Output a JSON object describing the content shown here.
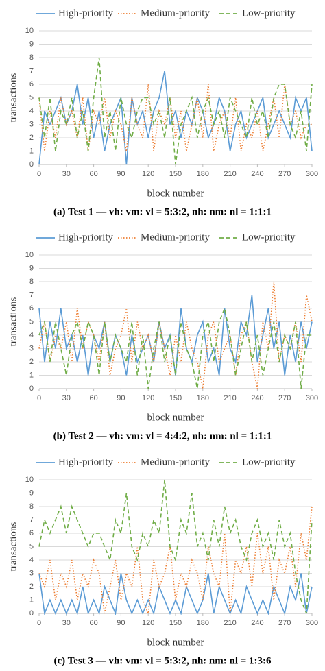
{
  "chart_data": [
    {
      "type": "line",
      "title": "(a) Test 1 — vh: vm: vl = 5:3:2, nh: nm: nl = 1:1:1",
      "x_label": "block number",
      "y_label": "transactions",
      "x": [
        0,
        6,
        12,
        18,
        24,
        30,
        36,
        42,
        48,
        54,
        60,
        66,
        72,
        78,
        84,
        90,
        96,
        102,
        108,
        114,
        120,
        126,
        132,
        138,
        144,
        150,
        156,
        162,
        168,
        174,
        180,
        186,
        192,
        198,
        204,
        210,
        216,
        222,
        228,
        234,
        240,
        246,
        252,
        258,
        264,
        270,
        276,
        282,
        288,
        294,
        300
      ],
      "xlim": [
        0,
        300
      ],
      "xticks": [
        0,
        30,
        60,
        90,
        120,
        150,
        180,
        210,
        240,
        270,
        300
      ],
      "ylim": [
        0,
        10
      ],
      "yticks": [
        0,
        1,
        2,
        3,
        4,
        5,
        6,
        7,
        8,
        9,
        10
      ],
      "grid": true,
      "series": [
        {
          "name": "High-priority",
          "color": "#5b9bd5",
          "dash": "solid",
          "values": [
            0,
            4,
            3,
            4,
            5,
            3,
            4,
            6,
            3,
            5,
            2,
            4,
            1,
            3,
            4,
            5,
            0,
            5,
            3,
            4,
            2,
            4,
            5,
            7,
            3,
            4,
            2,
            4,
            3,
            5,
            4,
            2,
            3,
            5,
            4,
            1,
            3,
            4,
            2,
            3,
            4,
            5,
            2,
            3,
            4,
            3,
            2,
            5,
            4,
            5,
            1
          ]
        },
        {
          "name": "Medium-priority",
          "color": "#ed7d31",
          "dash": "dotted",
          "values": [
            5,
            1,
            4,
            2,
            5,
            3,
            4,
            2,
            5,
            1,
            4,
            3,
            5,
            2,
            4,
            3,
            1,
            5,
            3,
            2,
            6,
            1,
            4,
            3,
            5,
            2,
            4,
            1,
            3,
            5,
            2,
            6,
            1,
            3,
            4,
            2,
            5,
            1,
            3,
            2,
            4,
            1,
            3,
            5,
            2,
            6,
            3,
            4,
            2,
            3,
            3
          ]
        },
        {
          "name": "Low-priority",
          "color": "#70ad47",
          "dash": "dashed",
          "values": [
            5,
            2,
            5,
            1,
            4,
            3,
            5,
            2,
            4,
            1,
            5,
            8,
            2,
            4,
            1,
            5,
            3,
            2,
            4,
            5,
            5,
            3,
            4,
            2,
            5,
            0,
            3,
            4,
            5,
            2,
            4,
            5,
            3,
            4,
            2,
            5,
            4,
            3,
            2,
            5,
            3,
            4,
            2,
            5,
            6,
            6,
            3,
            2,
            4,
            1,
            6
          ]
        }
      ]
    },
    {
      "type": "line",
      "title": "(b) Test 2 — vh: vm: vl = 4:4:2, nh: nm: nl = 1:1:1",
      "x_label": "block number",
      "y_label": "transactions",
      "x": [
        0,
        6,
        12,
        18,
        24,
        30,
        36,
        42,
        48,
        54,
        60,
        66,
        72,
        78,
        84,
        90,
        96,
        102,
        108,
        114,
        120,
        126,
        132,
        138,
        144,
        150,
        156,
        162,
        168,
        174,
        180,
        186,
        192,
        198,
        204,
        210,
        216,
        222,
        228,
        234,
        240,
        246,
        252,
        258,
        264,
        270,
        276,
        282,
        288,
        294,
        300
      ],
      "xlim": [
        0,
        300
      ],
      "xticks": [
        0,
        30,
        60,
        90,
        120,
        150,
        180,
        210,
        240,
        270,
        300
      ],
      "ylim": [
        0,
        10
      ],
      "yticks": [
        0,
        1,
        2,
        3,
        4,
        5,
        6,
        7,
        8,
        9,
        10
      ],
      "grid": true,
      "series": [
        {
          "name": "High-priority",
          "color": "#5b9bd5",
          "dash": "solid",
          "values": [
            6,
            2,
            5,
            3,
            6,
            3,
            4,
            2,
            4,
            1,
            4,
            3,
            5,
            2,
            4,
            3,
            1,
            4,
            2,
            3,
            4,
            2,
            5,
            3,
            4,
            1,
            6,
            3,
            2,
            4,
            5,
            2,
            3,
            1,
            6,
            3,
            2,
            5,
            4,
            7,
            2,
            4,
            6,
            3,
            5,
            1,
            4,
            2,
            5,
            3,
            5
          ]
        },
        {
          "name": "Medium-priority",
          "color": "#ed7d31",
          "dash": "dotted",
          "values": [
            3,
            5,
            2,
            4,
            3,
            5,
            2,
            6,
            3,
            5,
            4,
            2,
            5,
            1,
            3,
            4,
            6,
            2,
            5,
            3,
            4,
            2,
            5,
            3,
            1,
            4,
            2,
            5,
            3,
            2,
            0,
            4,
            5,
            2,
            3,
            4,
            1,
            4,
            5,
            2,
            0,
            5,
            3,
            8,
            2,
            4,
            3,
            5,
            2,
            7,
            5
          ]
        },
        {
          "name": "Low-priority",
          "color": "#70ad47",
          "dash": "dashed",
          "values": [
            4,
            5,
            2,
            5,
            3,
            1,
            4,
            5,
            3,
            5,
            4,
            1,
            5,
            2,
            4,
            3,
            2,
            5,
            1,
            4,
            0,
            3,
            5,
            2,
            4,
            1,
            5,
            3,
            2,
            0,
            4,
            5,
            2,
            5,
            6,
            4,
            1,
            3,
            5,
            2,
            4,
            1,
            3,
            5,
            2,
            4,
            3,
            5,
            0,
            4,
            4
          ]
        }
      ]
    },
    {
      "type": "line",
      "title": "(c) Test 3 — vh: vm: vl = 5:3:2, nh: nm: nl = 1:3:6",
      "x_label": "block number",
      "y_label": "transactions",
      "x": [
        0,
        6,
        12,
        18,
        24,
        30,
        36,
        42,
        48,
        54,
        60,
        66,
        72,
        78,
        84,
        90,
        96,
        102,
        108,
        114,
        120,
        126,
        132,
        138,
        144,
        150,
        156,
        162,
        168,
        174,
        180,
        186,
        192,
        198,
        204,
        210,
        216,
        222,
        228,
        234,
        240,
        246,
        252,
        258,
        264,
        270,
        276,
        282,
        288,
        294,
        300
      ],
      "xlim": [
        0,
        300
      ],
      "xticks": [
        0,
        30,
        60,
        90,
        120,
        150,
        180,
        210,
        240,
        270,
        300
      ],
      "ylim": [
        0,
        10
      ],
      "yticks": [
        0,
        1,
        2,
        3,
        4,
        5,
        6,
        7,
        8,
        9,
        10
      ],
      "grid": true,
      "series": [
        {
          "name": "High-priority",
          "color": "#5b9bd5",
          "dash": "solid",
          "values": [
            3,
            0,
            1,
            0,
            1,
            0,
            1,
            0,
            2,
            0,
            1,
            0,
            2,
            1,
            0,
            3,
            1,
            0,
            1,
            0,
            1,
            0,
            2,
            1,
            0,
            1,
            0,
            2,
            1,
            0,
            1,
            3,
            0,
            2,
            1,
            0,
            1,
            0,
            2,
            1,
            0,
            1,
            0,
            2,
            1,
            0,
            2,
            1,
            3,
            0,
            2
          ]
        },
        {
          "name": "Medium-priority",
          "color": "#ed7d31",
          "dash": "dotted",
          "values": [
            3,
            2,
            4,
            1,
            3,
            2,
            4,
            1,
            3,
            2,
            4,
            3,
            0,
            2,
            4,
            1,
            3,
            2,
            5,
            1,
            0,
            4,
            2,
            3,
            5,
            1,
            3,
            2,
            4,
            3,
            1,
            5,
            3,
            2,
            6,
            0,
            4,
            3,
            5,
            2,
            6,
            3,
            5,
            1,
            4,
            3,
            5,
            2,
            6,
            4,
            8
          ]
        },
        {
          "name": "Low-priority",
          "color": "#70ad47",
          "dash": "dashed",
          "values": [
            5,
            7,
            6,
            7,
            8,
            6,
            8,
            7,
            6,
            5,
            6,
            6,
            5,
            4,
            7,
            6,
            9,
            5,
            4,
            6,
            5,
            7,
            6,
            10,
            5,
            4,
            7,
            6,
            9,
            5,
            6,
            4,
            7,
            5,
            8,
            6,
            7,
            5,
            4,
            6,
            7,
            5,
            6,
            4,
            7,
            5,
            6,
            3,
            1,
            0,
            7
          ]
        }
      ]
    }
  ]
}
